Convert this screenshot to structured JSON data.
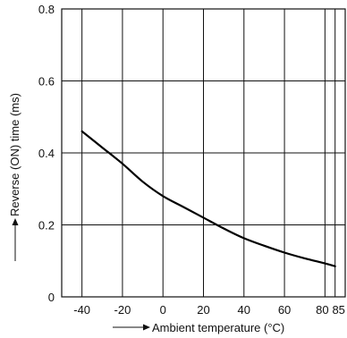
{
  "chart_data": {
    "type": "line",
    "title": "",
    "xlabel": "Ambient temperature (°C)",
    "ylabel": "Reverse (ON) time (ms)",
    "xlim": [
      -50,
      90
    ],
    "ylim": [
      0,
      0.8
    ],
    "grid": true,
    "x_ticks": [
      -40,
      -20,
      0,
      20,
      40,
      60,
      80,
      85
    ],
    "x_tick_labels": [
      "-40",
      "-20",
      "0",
      "20",
      "40",
      "60",
      "80",
      "85"
    ],
    "y_ticks": [
      0,
      0.2,
      0.4,
      0.6,
      0.8
    ],
    "y_tick_labels": [
      "0",
      "0.2",
      "0.4",
      "0.6",
      "0.8"
    ],
    "series": [
      {
        "x": [
          -40,
          -30,
          -20,
          -10,
          0,
          10,
          20,
          30,
          40,
          50,
          60,
          70,
          80,
          85
        ],
        "y": [
          0.46,
          0.415,
          0.37,
          0.32,
          0.28,
          0.25,
          0.22,
          0.19,
          0.163,
          0.142,
          0.123,
          0.107,
          0.093,
          0.085
        ]
      }
    ]
  }
}
